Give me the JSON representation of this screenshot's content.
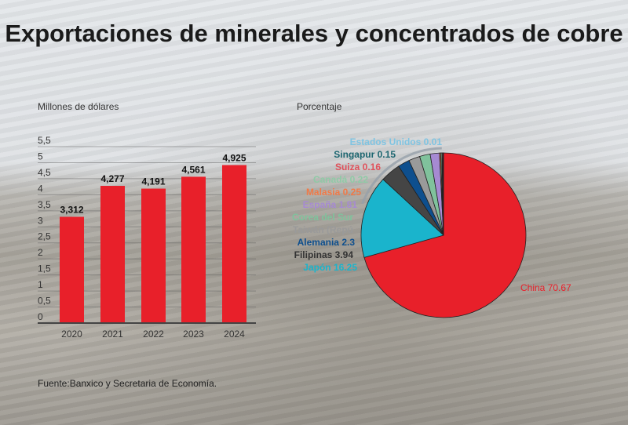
{
  "title": "Exportaciones de minerales y concentrados de cobre",
  "source": "Fuente:Banxico y Secretaria de Economía.",
  "chart_data": [
    {
      "type": "bar",
      "ylabel": "Millones de dólares",
      "categories": [
        "2020",
        "2021",
        "2022",
        "2023",
        "2024"
      ],
      "values": [
        3.312,
        4.277,
        4.191,
        4.561,
        4.925
      ],
      "data_labels": [
        "3,312",
        "4,277",
        "4,191",
        "4,561",
        "4,925"
      ],
      "yticks": [
        "0",
        "0,5",
        "1",
        "1,5",
        "2",
        "2,5",
        "3",
        "3,5",
        "4",
        "4,5",
        "5",
        "5,5"
      ],
      "ylim": [
        0,
        5.5
      ],
      "grid": true,
      "color": "#e8202a"
    },
    {
      "type": "pie",
      "title": "Porcentaje",
      "slices": [
        {
          "label": "China 70.67",
          "value": 70.67,
          "color": "#e8202a"
        },
        {
          "label": "Japón 16.25",
          "value": 16.25,
          "color": "#1ab4cc"
        },
        {
          "label": "Filipinas 3.94",
          "value": 3.94,
          "color": "#454545"
        },
        {
          "label": "Alemania 2.3",
          "value": 2.3,
          "color": "#0e4f8e"
        },
        {
          "label": "Taiwán (Repú",
          "value": 2.2,
          "color": "#9a9a9a"
        },
        {
          "label": "Corea del Sur",
          "value": 2.08,
          "color": "#80c29c"
        },
        {
          "label": "España 1.81",
          "value": 1.81,
          "color": "#a68ad2"
        },
        {
          "label": "Malasia 0.25",
          "value": 0.25,
          "color": "#f07a48"
        },
        {
          "label": "Canadá 0.22",
          "value": 0.22,
          "color": "#8fcaa6"
        },
        {
          "label": "Suiza 0.16",
          "value": 0.16,
          "color": "#e0505a"
        },
        {
          "label": "Singapur 0.15",
          "value": 0.15,
          "color": "#1d6670"
        },
        {
          "label": "Estados Unidos 0.01",
          "value": 0.01,
          "color": "#7fc4e2"
        }
      ]
    }
  ]
}
